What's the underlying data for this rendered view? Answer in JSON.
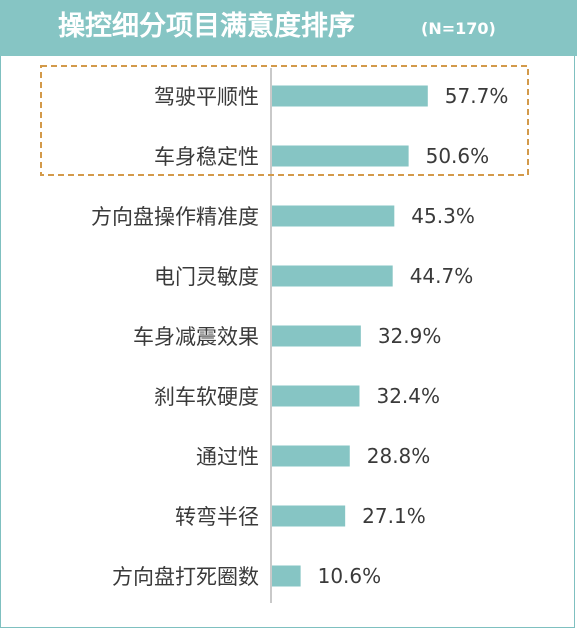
{
  "header": {
    "title": "操控细分项目满意度排序",
    "note": "(N=170)"
  },
  "colors": {
    "header_bg": "#86c5c4",
    "bar": "#86c5c4",
    "highlight_border": "#d39a4a"
  },
  "chart_data": {
    "type": "bar",
    "orientation": "horizontal",
    "title": "操控细分项目满意度排序",
    "subtitle": "(N=170)",
    "categories": [
      "驾驶平顺性",
      "车身稳定性",
      "方向盘操作精准度",
      "电门灵敏度",
      "车身减震效果",
      "刹车软硬度",
      "通过性",
      "转弯半径",
      "方向盘打死圈数"
    ],
    "values": [
      57.7,
      50.6,
      45.3,
      44.7,
      32.9,
      32.4,
      28.8,
      27.1,
      10.6
    ],
    "value_labels": [
      "57.7%",
      "50.6%",
      "45.3%",
      "44.7%",
      "32.9%",
      "32.4%",
      "28.8%",
      "27.1%",
      "10.6%"
    ],
    "unit": "%",
    "xlim": [
      0,
      100
    ],
    "highlighted": [
      "驾驶平顺性",
      "车身稳定性"
    ],
    "grid": false,
    "legend": "none"
  }
}
